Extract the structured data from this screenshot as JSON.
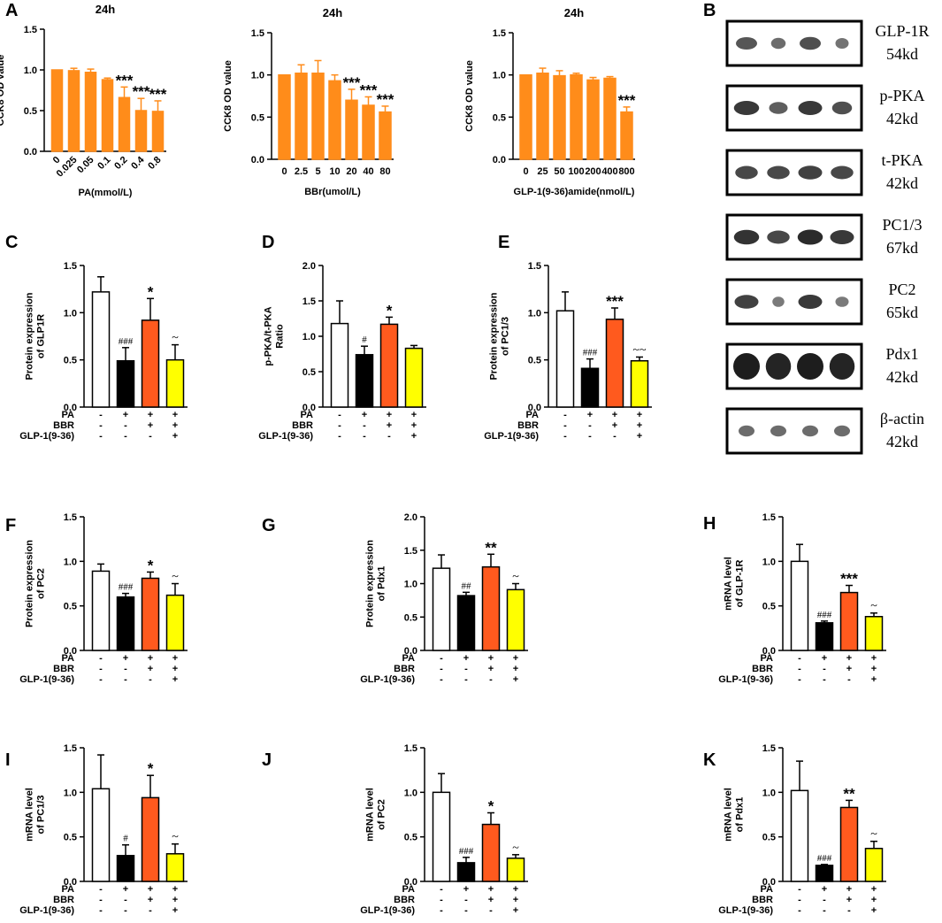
{
  "panel_letters": [
    "A",
    "B",
    "C",
    "D",
    "E",
    "F",
    "G",
    "H",
    "I",
    "J",
    "K"
  ],
  "colors": {
    "orange": "#FF8C1A",
    "red_orange": "#FF5A1E",
    "black": "#000000",
    "white": "#FFFFFF",
    "yellow": "#FFFF00"
  },
  "western_blot": {
    "labels": [
      {
        "name": "GLP-1R",
        "size": "54kd"
      },
      {
        "name": "p-PKA",
        "size": "42kd"
      },
      {
        "name": "t-PKA",
        "size": "42kd"
      },
      {
        "name": "PC1/3",
        "size": "67kd"
      },
      {
        "name": "PC2",
        "size": "65kd"
      },
      {
        "name": "Pdx1",
        "size": "42kd"
      },
      {
        "name": "β-actin",
        "size": "42kd"
      }
    ]
  },
  "chart_data": [
    {
      "id": "A1",
      "panel": "A",
      "type": "bar",
      "title": "24h",
      "xlabel": "PA(mmol/L)",
      "ylabel": "CCK8 OD value",
      "ylim": [
        0,
        1.5
      ],
      "yticks": [
        "0.0",
        "0.5",
        "1.0",
        "1.5"
      ],
      "categories": [
        "0",
        "0.025",
        "0.05",
        "0.1",
        "0.2",
        "0.4",
        "0.8"
      ],
      "values": [
        1.0,
        0.99,
        0.97,
        0.88,
        0.66,
        0.5,
        0.49
      ],
      "errors": [
        0.0,
        0.03,
        0.04,
        0.02,
        0.13,
        0.15,
        0.13
      ],
      "annotations": [
        "",
        "",
        "",
        "",
        "***",
        "***",
        "***"
      ]
    },
    {
      "id": "A2",
      "panel": "A",
      "type": "bar",
      "title": "24h",
      "xlabel": "BBr(umol/L)",
      "ylabel": "CCK8 OD value",
      "ylim": [
        0,
        1.5
      ],
      "yticks": [
        "0.0",
        "0.5",
        "1.0",
        "1.5"
      ],
      "categories": [
        "0",
        "2.5",
        "5",
        "10",
        "20",
        "40",
        "80"
      ],
      "values": [
        1.0,
        1.02,
        1.02,
        0.93,
        0.7,
        0.64,
        0.56
      ],
      "errors": [
        0.0,
        0.1,
        0.15,
        0.07,
        0.13,
        0.1,
        0.07
      ],
      "annotations": [
        "",
        "",
        "",
        "",
        "***",
        "***",
        "***"
      ]
    },
    {
      "id": "A3",
      "panel": "A",
      "type": "bar",
      "title": "24h",
      "xlabel": "GLP-1(9-36)amide(nmol/L)",
      "ylabel": "CCK8 OD value",
      "ylim": [
        0,
        1.5
      ],
      "yticks": [
        "0.0",
        "0.5",
        "1.0",
        "1.5"
      ],
      "categories": [
        "0",
        "25",
        "50",
        "100",
        "200",
        "400",
        "800"
      ],
      "values": [
        1.0,
        1.02,
        0.99,
        1.0,
        0.94,
        0.96,
        0.56
      ],
      "errors": [
        0.0,
        0.06,
        0.06,
        0.02,
        0.03,
        0.02,
        0.06
      ],
      "annotations": [
        "",
        "",
        "",
        "",
        "",
        "",
        "***"
      ]
    },
    {
      "id": "C",
      "panel": "C",
      "type": "bar",
      "ylabel": [
        "Protein expression",
        "of GLP1R"
      ],
      "ylim": [
        0,
        1.5
      ],
      "yticks": [
        "0.0",
        "0.5",
        "1.0",
        "1.5"
      ],
      "values": [
        1.22,
        0.49,
        0.92,
        0.5
      ],
      "errors": [
        0.16,
        0.14,
        0.23,
        0.16
      ],
      "annotations": [
        "",
        "###",
        "*",
        "~"
      ]
    },
    {
      "id": "D",
      "panel": "D",
      "type": "bar",
      "ylabel": [
        "p-PKA/t-PKA",
        "Ratio"
      ],
      "ylim": [
        0,
        2.0
      ],
      "yticks": [
        "0.0",
        "0.5",
        "1.0",
        "1.5",
        "2.0"
      ],
      "values": [
        1.18,
        0.74,
        1.17,
        0.83
      ],
      "errors": [
        0.32,
        0.12,
        0.1,
        0.04
      ],
      "annotations": [
        "",
        "#",
        "*",
        ""
      ]
    },
    {
      "id": "E",
      "panel": "E",
      "type": "bar",
      "ylabel": [
        "Protein expression",
        "of PC1/3"
      ],
      "ylim": [
        0,
        1.5
      ],
      "yticks": [
        "0.0",
        "0.5",
        "1.0",
        "1.5"
      ],
      "values": [
        1.02,
        0.41,
        0.93,
        0.49
      ],
      "errors": [
        0.2,
        0.1,
        0.12,
        0.04
      ],
      "annotations": [
        "",
        "###",
        "***",
        "~~"
      ]
    },
    {
      "id": "F",
      "panel": "F",
      "type": "bar",
      "ylabel": [
        "Protein expression",
        "of PC2"
      ],
      "ylim": [
        0,
        1.5
      ],
      "yticks": [
        "0.0",
        "0.5",
        "1.0",
        "1.5"
      ],
      "values": [
        0.89,
        0.6,
        0.81,
        0.62
      ],
      "errors": [
        0.08,
        0.04,
        0.07,
        0.13
      ],
      "annotations": [
        "",
        "###",
        "*",
        "~"
      ]
    },
    {
      "id": "G",
      "panel": "G",
      "type": "bar",
      "ylabel": [
        "Protein expression",
        "of Pdx1"
      ],
      "ylim": [
        0,
        2.0
      ],
      "yticks": [
        "0.0",
        "0.5",
        "1.0",
        "1.5",
        "2.0"
      ],
      "values": [
        1.23,
        0.82,
        1.25,
        0.91
      ],
      "errors": [
        0.2,
        0.05,
        0.19,
        0.09
      ],
      "annotations": [
        "",
        "##",
        "**",
        "~"
      ]
    },
    {
      "id": "H",
      "panel": "H",
      "type": "bar",
      "ylabel": [
        "mRNA level",
        "of GLP-1R"
      ],
      "ylim": [
        0,
        1.5
      ],
      "yticks": [
        "0.0",
        "0.5",
        "1.0",
        "1.5"
      ],
      "values": [
        1.0,
        0.31,
        0.65,
        0.38
      ],
      "errors": [
        0.19,
        0.02,
        0.08,
        0.04
      ],
      "annotations": [
        "",
        "###",
        "***",
        "~"
      ]
    },
    {
      "id": "I",
      "panel": "I",
      "type": "bar",
      "ylabel": [
        "mRNA level",
        "of PC1/3"
      ],
      "ylim": [
        0,
        1.5
      ],
      "yticks": [
        "0.0",
        "0.5",
        "1.0",
        "1.5"
      ],
      "values": [
        1.04,
        0.29,
        0.94,
        0.31
      ],
      "errors": [
        0.38,
        0.12,
        0.25,
        0.11
      ],
      "annotations": [
        "",
        "#",
        "*",
        "~"
      ]
    },
    {
      "id": "J",
      "panel": "J",
      "type": "bar",
      "ylabel": [
        "mRNA level",
        "of PC2"
      ],
      "ylim": [
        0,
        1.5
      ],
      "yticks": [
        "0.0",
        "0.5",
        "1.0",
        "1.5"
      ],
      "values": [
        1.0,
        0.21,
        0.64,
        0.26
      ],
      "errors": [
        0.21,
        0.06,
        0.13,
        0.04
      ],
      "annotations": [
        "",
        "###",
        "*",
        "~"
      ]
    },
    {
      "id": "K",
      "panel": "K",
      "type": "bar",
      "ylabel": [
        "mRNA level",
        "of Pdx1"
      ],
      "ylim": [
        0,
        1.5
      ],
      "yticks": [
        "0.0",
        "0.5",
        "1.0",
        "1.5"
      ],
      "values": [
        1.02,
        0.18,
        0.83,
        0.37
      ],
      "errors": [
        0.33,
        0.01,
        0.08,
        0.08
      ],
      "annotations": [
        "",
        "###",
        "**",
        "~"
      ]
    }
  ],
  "treatment_table": {
    "rows": [
      {
        "label": "PA",
        "signs": [
          "-",
          "+",
          "+",
          "+"
        ]
      },
      {
        "label": "BBR",
        "signs": [
          "-",
          "-",
          "+",
          "+"
        ]
      },
      {
        "label": "GLP-1(9-36)",
        "signs": [
          "-",
          "-",
          "-",
          "+"
        ]
      }
    ]
  }
}
